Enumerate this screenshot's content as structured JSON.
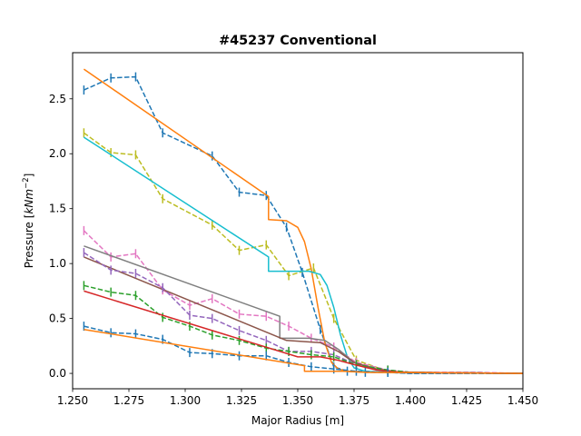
{
  "chart_data": {
    "type": "line",
    "title": "#45237 Conventional",
    "xlabel": "Major Radius [m]",
    "ylabel_main": "Pressure [",
    "ylabel_unit_base": "kNm",
    "ylabel_unit_exp": "−2",
    "ylabel_close": "]",
    "xlim": [
      1.25,
      1.45
    ],
    "ylim": [
      -0.14,
      2.92
    ],
    "xticks": [
      1.25,
      1.275,
      1.3,
      1.325,
      1.35,
      1.375,
      1.4,
      1.425,
      1.45
    ],
    "xtick_labels": [
      "1.250",
      "1.275",
      "1.300",
      "1.325",
      "1.350",
      "1.375",
      "1.400",
      "1.425",
      "1.450"
    ],
    "yticks": [
      0.0,
      0.5,
      1.0,
      1.5,
      2.0,
      2.5
    ],
    "ytick_labels": [
      "0.0",
      "0.5",
      "1.0",
      "1.5",
      "2.0",
      "2.5"
    ],
    "grid": false,
    "series": [
      {
        "color": "#1f77b4",
        "style": "dashed",
        "errorbars": true,
        "x": [
          1.255,
          1.267,
          1.278,
          1.29,
          1.312,
          1.324,
          1.336,
          1.345,
          1.352,
          1.36,
          1.366,
          1.372,
          1.38,
          1.39,
          1.4,
          1.42,
          1.45
        ],
        "y": [
          2.58,
          2.69,
          2.7,
          2.19,
          1.98,
          1.65,
          1.62,
          1.33,
          0.92,
          0.4,
          0.06,
          0.02,
          0.01,
          0.01,
          0.0,
          0.0,
          0.0
        ]
      },
      {
        "color": "#ff7f0e",
        "style": "solid",
        "errorbars": false,
        "x": [
          1.255,
          1.337,
          1.337,
          1.345,
          1.35,
          1.353,
          1.356,
          1.359,
          1.362,
          1.365,
          1.368,
          1.372,
          1.38,
          1.45
        ],
        "y": [
          2.77,
          1.61,
          1.4,
          1.39,
          1.33,
          1.2,
          0.95,
          0.6,
          0.28,
          0.1,
          0.04,
          0.02,
          0.01,
          0.0
        ]
      },
      {
        "color": "#bcbd22",
        "style": "dashed",
        "errorbars": true,
        "x": [
          1.255,
          1.267,
          1.278,
          1.29,
          1.312,
          1.324,
          1.336,
          1.346,
          1.357,
          1.366,
          1.376,
          1.39,
          1.4,
          1.45
        ],
        "y": [
          2.19,
          2.01,
          1.99,
          1.59,
          1.35,
          1.12,
          1.17,
          0.89,
          0.96,
          0.5,
          0.12,
          0.02,
          0.01,
          0.0
        ]
      },
      {
        "color": "#17becf",
        "style": "solid",
        "errorbars": false,
        "x": [
          1.255,
          1.337,
          1.337,
          1.355,
          1.36,
          1.363,
          1.366,
          1.369,
          1.372,
          1.375,
          1.38,
          1.39,
          1.45
        ],
        "y": [
          2.15,
          1.06,
          0.93,
          0.93,
          0.9,
          0.8,
          0.6,
          0.35,
          0.15,
          0.05,
          0.02,
          0.01,
          0.0
        ]
      },
      {
        "color": "#e377c2",
        "style": "dashed",
        "errorbars": true,
        "x": [
          1.255,
          1.267,
          1.278,
          1.29,
          1.302,
          1.312,
          1.324,
          1.336,
          1.346,
          1.356,
          1.366,
          1.376,
          1.39,
          1.4,
          1.43,
          1.45
        ],
        "y": [
          1.3,
          1.06,
          1.09,
          0.76,
          0.62,
          0.68,
          0.54,
          0.52,
          0.43,
          0.32,
          0.24,
          0.1,
          0.03,
          0.01,
          0.01,
          0.0
        ]
      },
      {
        "color": "#7f7f7f",
        "style": "solid",
        "errorbars": false,
        "x": [
          1.255,
          1.342,
          1.342,
          1.355,
          1.362,
          1.368,
          1.375,
          1.385,
          1.395,
          1.45
        ],
        "y": [
          1.16,
          0.52,
          0.32,
          0.32,
          0.3,
          0.22,
          0.1,
          0.03,
          0.01,
          0.0
        ]
      },
      {
        "color": "#8c564b",
        "style": "solid",
        "errorbars": false,
        "x": [
          1.255,
          1.345,
          1.36,
          1.368,
          1.375,
          1.385,
          1.395,
          1.45
        ],
        "y": [
          1.06,
          0.3,
          0.28,
          0.2,
          0.1,
          0.04,
          0.01,
          0.0
        ]
      },
      {
        "color": "#9467bd",
        "style": "dashed",
        "errorbars": true,
        "x": [
          1.255,
          1.267,
          1.278,
          1.29,
          1.302,
          1.312,
          1.324,
          1.336,
          1.346,
          1.356,
          1.366,
          1.376,
          1.39,
          1.4,
          1.45
        ],
        "y": [
          1.1,
          0.94,
          0.91,
          0.78,
          0.53,
          0.5,
          0.39,
          0.3,
          0.2,
          0.2,
          0.17,
          0.08,
          0.03,
          0.01,
          0.0
        ]
      },
      {
        "color": "#2ca02c",
        "style": "dashed",
        "errorbars": true,
        "x": [
          1.255,
          1.267,
          1.278,
          1.29,
          1.302,
          1.312,
          1.324,
          1.336,
          1.346,
          1.356,
          1.366,
          1.376,
          1.39,
          1.4,
          1.45
        ],
        "y": [
          0.8,
          0.74,
          0.71,
          0.51,
          0.43,
          0.35,
          0.3,
          0.23,
          0.2,
          0.17,
          0.15,
          0.08,
          0.03,
          0.01,
          0.0
        ]
      },
      {
        "color": "#d62728",
        "style": "solid",
        "errorbars": false,
        "x": [
          1.255,
          1.35,
          1.36,
          1.368,
          1.375,
          1.385,
          1.395,
          1.45
        ],
        "y": [
          0.75,
          0.15,
          0.15,
          0.12,
          0.08,
          0.03,
          0.01,
          0.0
        ]
      },
      {
        "color": "#1f77b4",
        "style": "dashed",
        "errorbars": true,
        "x": [
          1.255,
          1.267,
          1.278,
          1.29,
          1.302,
          1.312,
          1.324,
          1.336,
          1.346,
          1.356,
          1.366,
          1.376,
          1.39,
          1.4,
          1.45
        ],
        "y": [
          0.43,
          0.37,
          0.36,
          0.31,
          0.19,
          0.18,
          0.16,
          0.16,
          0.1,
          0.06,
          0.04,
          0.02,
          0.01,
          0.0,
          0.0
        ]
      },
      {
        "color": "#ff7f0e",
        "style": "solid",
        "errorbars": false,
        "x": [
          1.255,
          1.353,
          1.353,
          1.37,
          1.38,
          1.45
        ],
        "y": [
          0.4,
          0.07,
          0.02,
          0.02,
          0.01,
          0.0
        ]
      }
    ]
  }
}
